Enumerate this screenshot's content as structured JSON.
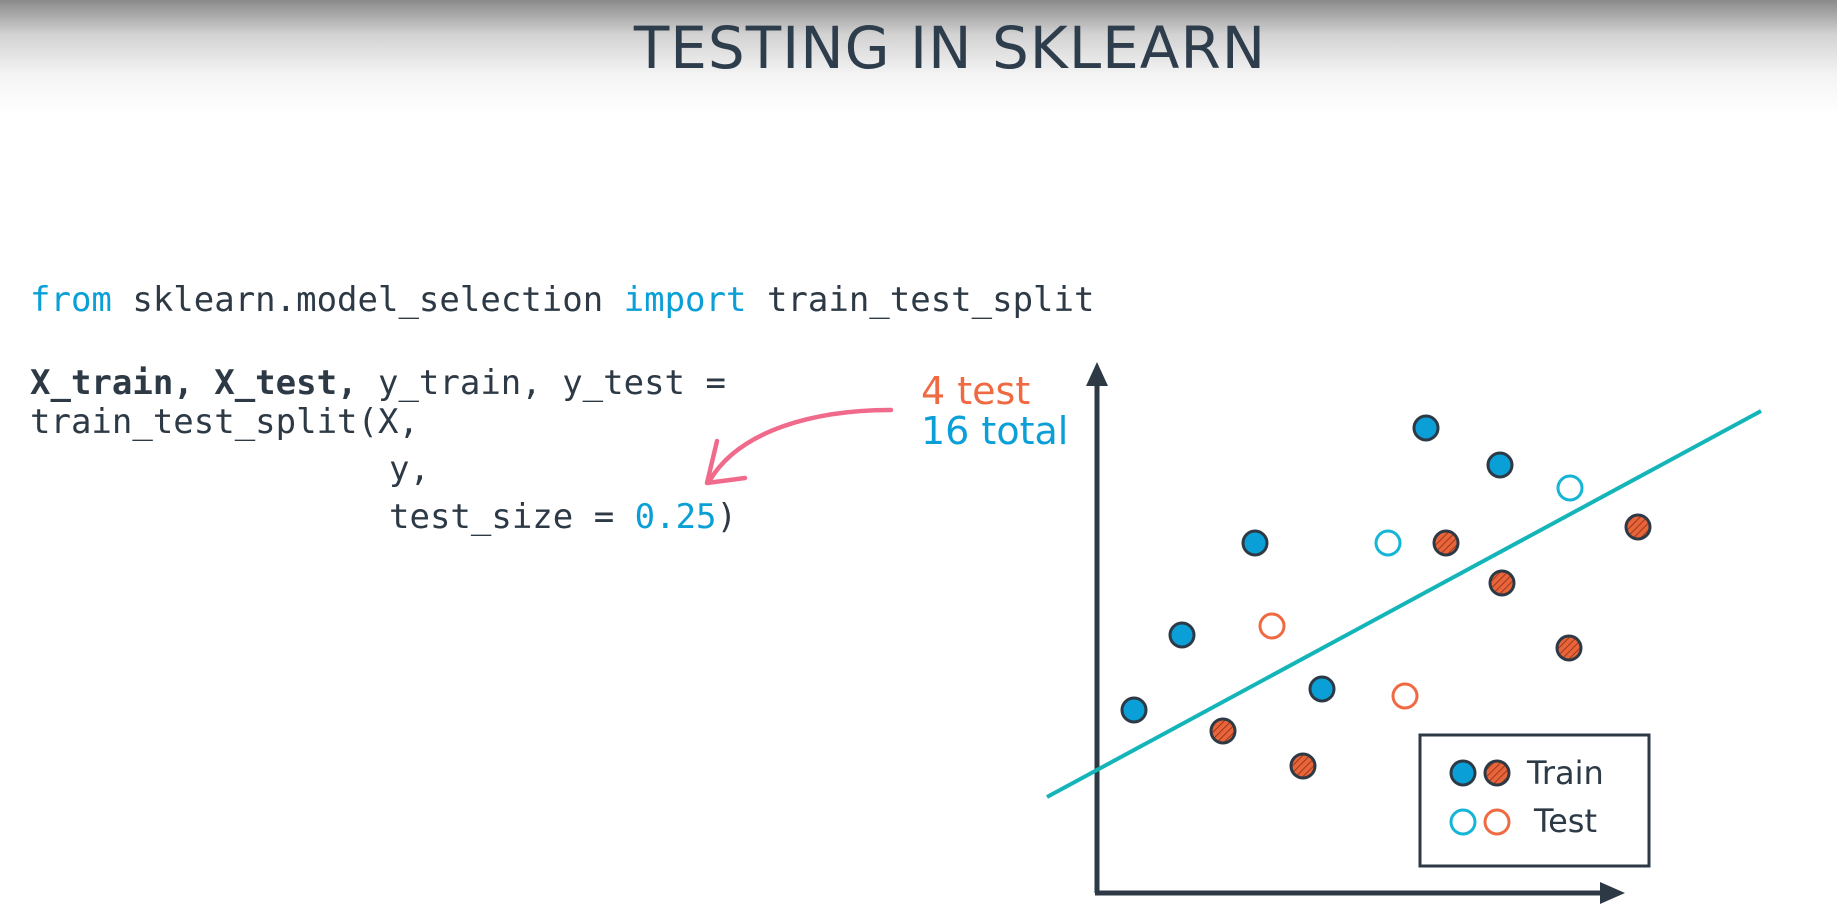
{
  "title": "TESTING IN SKLEARN",
  "code": {
    "line1": {
      "kw1": "from",
      "t1": " sklearn.model_selection ",
      "kw2": "import",
      "t2": " train_test_split"
    },
    "line2": {
      "bold": "X_train, X_test,",
      "rest": " y_train, y_test ="
    },
    "line3": "train_test_split(X,",
    "line4": "y,",
    "line5": {
      "prefix": "test_size = ",
      "value": "0.25",
      "suffix": ")"
    }
  },
  "annotation": {
    "test": "4 test",
    "total": "16 total"
  },
  "legend": {
    "train": "Train",
    "test": "Test"
  },
  "colors": {
    "blue": "#0a9fd6",
    "orange": "#e8643a",
    "teal_line": "#14b5b9",
    "pink_arrow": "#f06b8b",
    "dark": "#2d3a46"
  }
}
